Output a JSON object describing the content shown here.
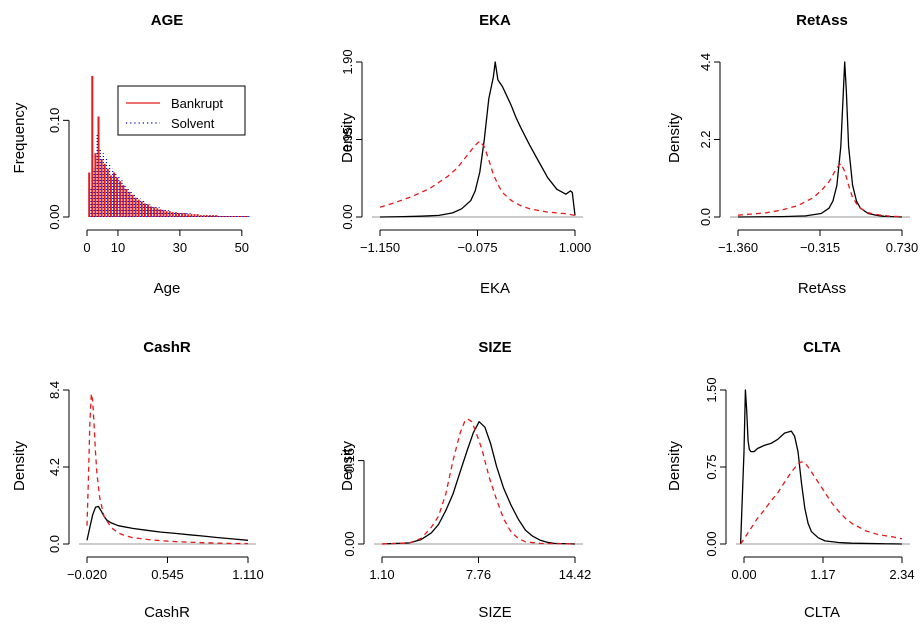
{
  "figure": {
    "colors": {
      "bankrupt": "#e41a1c",
      "solvent": "#0000cd",
      "black": "#000000",
      "baseline": "#999999"
    },
    "panels": [
      {
        "title": "AGE",
        "xlabel": "Age",
        "ylabel": "Frequency",
        "x_ticks": [
          "0",
          "10",
          "30",
          "50"
        ],
        "y_ticks": [
          "0.00",
          "0.10"
        ]
      },
      {
        "title": "EKA",
        "xlabel": "EKA",
        "ylabel": "Density",
        "x_ticks": [
          "−1.150",
          "−0.075",
          "1.000"
        ],
        "y_ticks": [
          "0.00",
          "0.95",
          "1.90"
        ]
      },
      {
        "title": "RetAss",
        "xlabel": "RetAss",
        "ylabel": "Density",
        "x_ticks": [
          "−1.360",
          "−0.315",
          "0.730"
        ],
        "y_ticks": [
          "0.0",
          "2.2",
          "4.4"
        ]
      },
      {
        "title": "CashR",
        "xlabel": "CashR",
        "ylabel": "Density",
        "x_ticks": [
          "−0.020",
          "0.545",
          "1.110"
        ],
        "y_ticks": [
          "0.0",
          "4.2",
          "8.4"
        ]
      },
      {
        "title": "SIZE",
        "xlabel": "SIZE",
        "ylabel": "Density",
        "x_ticks": [
          "1.10",
          "7.76",
          "14.42"
        ],
        "y_ticks": [
          "0.00",
          "0.15"
        ]
      },
      {
        "title": "CLTA",
        "xlabel": "CLTA",
        "ylabel": "Density",
        "x_ticks": [
          "0.00",
          "1.17",
          "2.34"
        ],
        "y_ticks": [
          "0.00",
          "0.75",
          "1.50"
        ]
      }
    ],
    "legend": {
      "bankrupt_label": "Bankrupt",
      "solvent_label": "Solvent"
    }
  },
  "chart_data": [
    {
      "type": "bar",
      "title": "AGE",
      "xlabel": "Age",
      "ylabel": "Frequency",
      "xlim": [
        0,
        52
      ],
      "ylim": [
        0,
        0.15
      ],
      "legend_position": "top-right",
      "x": [
        1,
        2,
        3,
        4,
        5,
        6,
        7,
        8,
        9,
        10,
        11,
        12,
        13,
        14,
        15,
        16,
        17,
        18,
        19,
        20,
        21,
        22,
        23,
        24,
        25,
        26,
        27,
        28,
        29,
        30,
        31,
        32,
        33,
        34,
        35,
        36,
        37,
        38,
        39,
        40,
        41,
        42,
        43,
        44,
        45,
        46,
        47,
        48,
        49,
        50,
        51,
        52
      ],
      "series": [
        {
          "name": "Bankrupt",
          "style": "solid",
          "values": [
            0.046,
            0.146,
            0.066,
            0.104,
            0.06,
            0.055,
            0.05,
            0.043,
            0.046,
            0.041,
            0.037,
            0.033,
            0.029,
            0.026,
            0.023,
            0.02,
            0.018,
            0.016,
            0.014,
            0.013,
            0.011,
            0.01,
            0.009,
            0.008,
            0.007,
            0.006,
            0.006,
            0.005,
            0.005,
            0.004,
            0.004,
            0.004,
            0.003,
            0.003,
            0.003,
            0.003,
            0.002,
            0.002,
            0.002,
            0.002,
            0.002,
            0.002,
            0.001,
            0.001,
            0.001,
            0.001,
            0.001,
            0.001,
            0.001,
            0.001,
            0.001,
            0.001
          ]
        },
        {
          "name": "Solvent",
          "style": "dotted",
          "values": [
            0.03,
            0.05,
            0.085,
            0.07,
            0.066,
            0.06,
            0.055,
            0.05,
            0.046,
            0.042,
            0.038,
            0.034,
            0.03,
            0.027,
            0.024,
            0.021,
            0.019,
            0.017,
            0.015,
            0.013,
            0.012,
            0.011,
            0.01,
            0.009,
            0.008,
            0.007,
            0.006,
            0.006,
            0.005,
            0.005,
            0.004,
            0.004,
            0.004,
            0.003,
            0.003,
            0.003,
            0.003,
            0.002,
            0.002,
            0.002,
            0.002,
            0.002,
            0.002,
            0.001,
            0.001,
            0.001,
            0.001,
            0.001,
            0.001,
            0.001,
            0.001,
            0.001
          ]
        }
      ]
    },
    {
      "type": "line",
      "title": "EKA",
      "xlabel": "EKA",
      "ylabel": "Density",
      "xlim": [
        -1.15,
        1.0
      ],
      "ylim": [
        0,
        1.9
      ],
      "series": [
        {
          "name": "Solvent",
          "style": "solid",
          "x": [
            -1.15,
            -0.9,
            -0.7,
            -0.5,
            -0.35,
            -0.25,
            -0.15,
            -0.1,
            -0.05,
            0.0,
            0.05,
            0.1,
            0.12,
            0.15,
            0.2,
            0.25,
            0.3,
            0.35,
            0.4,
            0.5,
            0.6,
            0.7,
            0.8,
            0.9,
            0.95,
            0.97,
            1.0
          ],
          "y": [
            0.0,
            0.005,
            0.01,
            0.02,
            0.05,
            0.1,
            0.2,
            0.32,
            0.55,
            0.95,
            1.45,
            1.72,
            1.9,
            1.68,
            1.6,
            1.48,
            1.36,
            1.22,
            1.1,
            0.88,
            0.68,
            0.48,
            0.34,
            0.28,
            0.32,
            0.3,
            0.02
          ]
        },
        {
          "name": "Bankrupt",
          "style": "dashed",
          "x": [
            -1.15,
            -1.0,
            -0.8,
            -0.6,
            -0.4,
            -0.3,
            -0.2,
            -0.1,
            -0.05,
            0.0,
            0.05,
            0.1,
            0.15,
            0.2,
            0.3,
            0.4,
            0.5,
            0.6,
            0.7,
            0.8,
            0.9,
            1.0
          ],
          "y": [
            0.12,
            0.17,
            0.25,
            0.35,
            0.5,
            0.6,
            0.74,
            0.88,
            0.93,
            0.86,
            0.7,
            0.52,
            0.4,
            0.3,
            0.2,
            0.14,
            0.1,
            0.08,
            0.06,
            0.05,
            0.04,
            0.02
          ]
        }
      ]
    },
    {
      "type": "line",
      "title": "RetAss",
      "xlabel": "RetAss",
      "ylabel": "Density",
      "xlim": [
        -1.36,
        0.73
      ],
      "ylim": [
        0,
        4.4
      ],
      "series": [
        {
          "name": "Solvent",
          "style": "solid",
          "x": [
            -1.36,
            -0.8,
            -0.5,
            -0.3,
            -0.2,
            -0.15,
            -0.1,
            -0.05,
            -0.02,
            0.0,
            0.02,
            0.05,
            0.1,
            0.15,
            0.2,
            0.3,
            0.4,
            0.5,
            0.73
          ],
          "y": [
            0.0,
            0.01,
            0.03,
            0.1,
            0.25,
            0.45,
            0.9,
            2.0,
            3.4,
            4.4,
            3.6,
            2.0,
            0.9,
            0.45,
            0.25,
            0.1,
            0.05,
            0.02,
            0.0
          ]
        },
        {
          "name": "Bankrupt",
          "style": "dashed",
          "x": [
            -1.36,
            -1.0,
            -0.8,
            -0.6,
            -0.4,
            -0.3,
            -0.2,
            -0.1,
            -0.05,
            0.0,
            0.05,
            0.1,
            0.15,
            0.2,
            0.3,
            0.4,
            0.5,
            0.6,
            0.73
          ],
          "y": [
            0.05,
            0.12,
            0.2,
            0.32,
            0.55,
            0.75,
            1.0,
            1.4,
            1.52,
            1.3,
            0.9,
            0.55,
            0.38,
            0.25,
            0.12,
            0.07,
            0.04,
            0.02,
            0.01
          ]
        }
      ]
    },
    {
      "type": "line",
      "title": "CashR",
      "xlabel": "CashR",
      "ylabel": "Density",
      "xlim": [
        -0.02,
        1.11
      ],
      "ylim": [
        0,
        8.4
      ],
      "series": [
        {
          "name": "Solvent",
          "style": "solid",
          "x": [
            -0.02,
            0.0,
            0.02,
            0.04,
            0.06,
            0.08,
            0.1,
            0.12,
            0.15,
            0.2,
            0.3,
            0.4,
            0.5,
            0.6,
            0.7,
            0.8,
            0.9,
            1.0,
            1.11
          ],
          "y": [
            0.2,
            0.9,
            1.6,
            2.0,
            2.05,
            1.8,
            1.5,
            1.3,
            1.15,
            1.0,
            0.85,
            0.75,
            0.65,
            0.58,
            0.5,
            0.43,
            0.35,
            0.28,
            0.2
          ]
        },
        {
          "name": "Bankrupt",
          "style": "dashed",
          "x": [
            -0.02,
            -0.01,
            0.0,
            0.01,
            0.02,
            0.03,
            0.04,
            0.05,
            0.07,
            0.1,
            0.15,
            0.2,
            0.25,
            0.3,
            0.4,
            0.5,
            0.6,
            0.7,
            0.8,
            0.9,
            1.0,
            1.11
          ],
          "y": [
            1.0,
            3.5,
            6.5,
            8.2,
            7.8,
            6.5,
            5.0,
            3.8,
            2.5,
            1.5,
            0.9,
            0.6,
            0.45,
            0.35,
            0.25,
            0.18,
            0.13,
            0.1,
            0.07,
            0.05,
            0.03,
            0.02
          ]
        }
      ]
    },
    {
      "type": "line",
      "title": "SIZE",
      "xlabel": "SIZE",
      "ylabel": "Density",
      "xlim": [
        1.1,
        14.42
      ],
      "ylim": [
        0,
        0.25
      ],
      "series": [
        {
          "name": "Solvent",
          "style": "solid",
          "x": [
            1.1,
            3.0,
            3.8,
            4.5,
            5.0,
            5.5,
            6.0,
            6.5,
            7.0,
            7.4,
            7.8,
            8.2,
            8.6,
            9.0,
            9.5,
            10.0,
            10.5,
            11.0,
            11.5,
            12.0,
            12.5,
            13.0,
            14.42
          ],
          "y": [
            0.0,
            0.002,
            0.008,
            0.02,
            0.035,
            0.06,
            0.09,
            0.13,
            0.17,
            0.2,
            0.22,
            0.21,
            0.18,
            0.14,
            0.1,
            0.07,
            0.045,
            0.025,
            0.014,
            0.007,
            0.003,
            0.001,
            0.0
          ]
        },
        {
          "name": "Bankrupt",
          "style": "dashed",
          "x": [
            1.1,
            3.0,
            3.8,
            4.5,
            5.0,
            5.5,
            6.0,
            6.5,
            6.8,
            7.0,
            7.3,
            7.6,
            8.0,
            8.5,
            9.0,
            9.5,
            10.0,
            10.5,
            11.0,
            12.0,
            14.42
          ],
          "y": [
            0.0,
            0.002,
            0.01,
            0.03,
            0.05,
            0.09,
            0.15,
            0.2,
            0.22,
            0.225,
            0.22,
            0.2,
            0.17,
            0.12,
            0.08,
            0.045,
            0.022,
            0.01,
            0.004,
            0.001,
            0.0
          ]
        }
      ]
    },
    {
      "type": "line",
      "title": "CLTA",
      "xlabel": "CLTA",
      "ylabel": "Density",
      "xlim": [
        0.0,
        2.34
      ],
      "ylim": [
        0,
        1.5
      ],
      "series": [
        {
          "name": "Solvent",
          "style": "solid",
          "x": [
            -0.05,
            0.0,
            0.02,
            0.04,
            0.06,
            0.08,
            0.1,
            0.15,
            0.2,
            0.3,
            0.4,
            0.5,
            0.6,
            0.7,
            0.75,
            0.8,
            0.85,
            0.9,
            0.95,
            1.0,
            1.1,
            1.2,
            1.4,
            1.6,
            2.0,
            2.34
          ],
          "y": [
            0.0,
            0.9,
            1.5,
            1.3,
            1.0,
            0.92,
            0.9,
            0.9,
            0.93,
            0.96,
            0.98,
            1.02,
            1.08,
            1.1,
            1.05,
            0.9,
            0.6,
            0.35,
            0.2,
            0.12,
            0.06,
            0.03,
            0.015,
            0.008,
            0.003,
            0.0
          ]
        },
        {
          "name": "Bankrupt",
          "style": "dashed",
          "x": [
            -0.05,
            0.0,
            0.1,
            0.2,
            0.3,
            0.4,
            0.5,
            0.6,
            0.7,
            0.8,
            0.85,
            0.9,
            0.95,
            1.0,
            1.1,
            1.2,
            1.3,
            1.4,
            1.5,
            1.6,
            1.8,
            2.0,
            2.2,
            2.34
          ],
          "y": [
            0.0,
            0.05,
            0.15,
            0.25,
            0.33,
            0.42,
            0.5,
            0.6,
            0.7,
            0.78,
            0.8,
            0.79,
            0.75,
            0.7,
            0.6,
            0.5,
            0.4,
            0.32,
            0.25,
            0.2,
            0.13,
            0.09,
            0.07,
            0.05
          ]
        }
      ]
    }
  ]
}
